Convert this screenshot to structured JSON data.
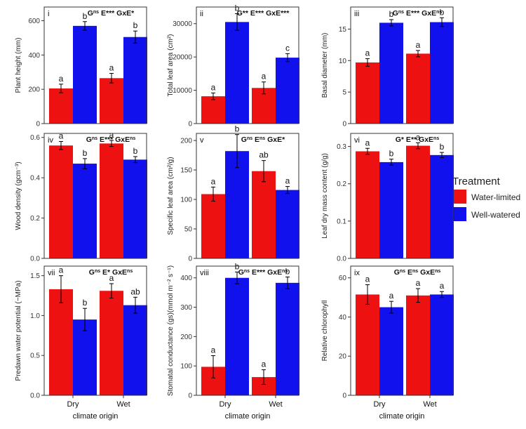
{
  "colors": {
    "water_limited": "#ee1111",
    "well_watered": "#1111ee",
    "panel_border": "#333333",
    "background": "#ffffff"
  },
  "legend": {
    "title": "Treatment",
    "entries": [
      {
        "label": "Water-limited",
        "color": "#ee1111"
      },
      {
        "label": "Well-watered",
        "color": "#1111ee"
      }
    ]
  },
  "shared_xlabel": "climate origin",
  "chart_data": [
    {
      "id": "i",
      "type": "bar",
      "title": "G^ns E*** GxE*",
      "ylabel": "Plant height (mm)",
      "ylim": [
        0,
        680
      ],
      "yticks": [
        0,
        200,
        400,
        600
      ],
      "categories": [
        "Dry",
        "Wet"
      ],
      "series": [
        {
          "name": "Water-limited",
          "values": [
            205,
            265
          ],
          "err": [
            25,
            28
          ],
          "letters": [
            "a",
            "a"
          ]
        },
        {
          "name": "Well-watered",
          "values": [
            570,
            505
          ],
          "err": [
            25,
            35
          ],
          "letters": [
            "b",
            "b"
          ]
        }
      ]
    },
    {
      "id": "ii",
      "type": "bar",
      "title": "G** E*** GxE***",
      "ylabel": "Total leaf area (cm²)",
      "ylim": [
        0,
        35000
      ],
      "yticks": [
        0,
        10000,
        20000,
        30000
      ],
      "categories": [
        "Dry",
        "Wet"
      ],
      "series": [
        {
          "name": "Water-limited",
          "values": [
            8200,
            10700
          ],
          "err": [
            1000,
            1800
          ],
          "letters": [
            "a",
            "a"
          ]
        },
        {
          "name": "Well-watered",
          "values": [
            30500,
            19800
          ],
          "err": [
            2500,
            1200
          ],
          "letters": [
            "b",
            "c"
          ]
        }
      ]
    },
    {
      "id": "iii",
      "type": "bar",
      "title": "G^ns E*** GxE^ns",
      "ylabel": "Basal diameter  (mm)",
      "ylim": [
        0,
        18.5
      ],
      "yticks": [
        0,
        5,
        10,
        15
      ],
      "categories": [
        "Dry",
        "Wet"
      ],
      "series": [
        {
          "name": "Water-limited",
          "values": [
            9.7,
            11.1
          ],
          "err": [
            0.6,
            0.5
          ],
          "letters": [
            "a",
            "a"
          ]
        },
        {
          "name": "Well-watered",
          "values": [
            16.0,
            16.1
          ],
          "err": [
            0.5,
            0.7
          ],
          "letters": [
            "b",
            "b"
          ]
        }
      ]
    },
    {
      "id": "iv",
      "type": "bar",
      "title": "G^ns E*** GxE^ns",
      "ylabel": "Wood density (gcm⁻³)",
      "ylim": [
        0,
        0.62
      ],
      "yticks": [
        0.0,
        0.2,
        0.4,
        0.6
      ],
      "categories": [
        "Dry",
        "Wet"
      ],
      "series": [
        {
          "name": "Water-limited",
          "values": [
            0.56,
            0.57
          ],
          "err": [
            0.02,
            0.015
          ],
          "letters": [
            "a",
            "a"
          ]
        },
        {
          "name": "Well-watered",
          "values": [
            0.47,
            0.49
          ],
          "err": [
            0.025,
            0.015
          ],
          "letters": [
            "b",
            "b"
          ]
        }
      ]
    },
    {
      "id": "v",
      "type": "bar",
      "title": "G^ns E^ns GxE*",
      "ylabel": "Specific leaf area (cm²/g)",
      "ylim": [
        0,
        212
      ],
      "yticks": [
        0,
        50,
        100,
        150,
        200
      ],
      "categories": [
        "Dry",
        "Wet"
      ],
      "series": [
        {
          "name": "Water-limited",
          "values": [
            109,
            148
          ],
          "err": [
            12,
            18
          ],
          "letters": [
            "a",
            "ab"
          ]
        },
        {
          "name": "Well-watered",
          "values": [
            182,
            116
          ],
          "err": [
            28,
            6
          ],
          "letters": [
            "b",
            "a"
          ]
        }
      ]
    },
    {
      "id": "vi",
      "type": "bar",
      "title": "G* E** GxE^ns",
      "ylabel": "Leaf dry mass content  (g/g)",
      "ylim": [
        0,
        0.335
      ],
      "yticks": [
        0.0,
        0.1,
        0.2,
        0.3
      ],
      "categories": [
        "Dry",
        "Wet"
      ],
      "series": [
        {
          "name": "Water-limited",
          "values": [
            0.287,
            0.302
          ],
          "err": [
            0.008,
            0.008
          ],
          "letters": [
            "a",
            "a"
          ]
        },
        {
          "name": "Well-watered",
          "values": [
            0.258,
            0.277
          ],
          "err": [
            0.008,
            0.007
          ],
          "letters": [
            "b",
            "b"
          ]
        }
      ]
    },
    {
      "id": "vii",
      "type": "bar",
      "title": "G^ns E* GxE^ns",
      "ylabel": "Predawn water potential  (−MPa)",
      "ylim": [
        0,
        1.62
      ],
      "yticks": [
        0.0,
        0.5,
        1.0,
        1.5
      ],
      "categories": [
        "Dry",
        "Wet"
      ],
      "series": [
        {
          "name": "Water-limited",
          "values": [
            1.33,
            1.31
          ],
          "err": [
            0.17,
            0.09
          ],
          "letters": [
            "a",
            "a"
          ]
        },
        {
          "name": "Well-watered",
          "values": [
            0.95,
            1.13
          ],
          "err": [
            0.14,
            0.1
          ],
          "letters": [
            "b",
            "ab"
          ]
        }
      ]
    },
    {
      "id": "viii",
      "type": "bar",
      "title": "G^ns E*** GxE^ns",
      "ylabel": "Stomatal conductance (gs)(mmol m⁻² s⁻¹)",
      "ylim": [
        0,
        440
      ],
      "yticks": [
        0,
        100,
        200,
        300,
        400
      ],
      "categories": [
        "Dry",
        "Wet"
      ],
      "series": [
        {
          "name": "Water-limited",
          "values": [
            97,
            62
          ],
          "err": [
            38,
            25
          ],
          "letters": [
            "a",
            "a"
          ]
        },
        {
          "name": "Well-watered",
          "values": [
            400,
            383
          ],
          "err": [
            20,
            20
          ],
          "letters": [
            "b",
            "b"
          ]
        }
      ]
    },
    {
      "id": "ix",
      "type": "bar",
      "title": "G^ns E^ns GxE^ns",
      "ylabel": "Relative chlorophyll",
      "ylim": [
        0,
        66
      ],
      "yticks": [
        0,
        20,
        40,
        60
      ],
      "categories": [
        "Dry",
        "Wet"
      ],
      "series": [
        {
          "name": "Water-limited",
          "values": [
            51.5,
            51.0
          ],
          "err": [
            5,
            3.5
          ],
          "letters": [
            "a",
            "a"
          ]
        },
        {
          "name": "Well-watered",
          "values": [
            45.0,
            51.5
          ],
          "err": [
            3,
            1.5
          ],
          "letters": [
            "a",
            "a"
          ]
        }
      ]
    }
  ]
}
